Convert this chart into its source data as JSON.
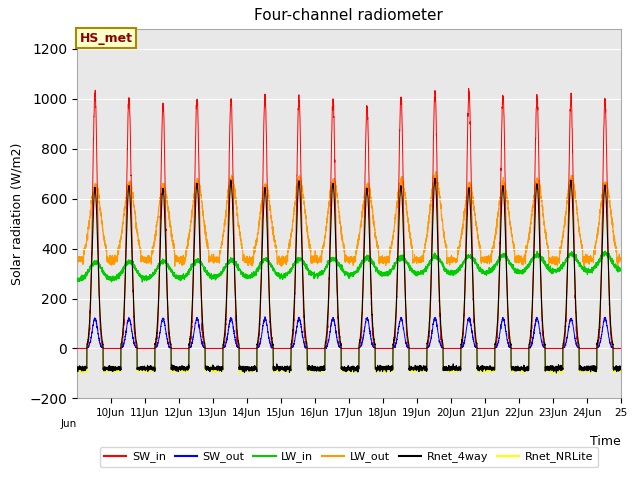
{
  "title": "Four-channel radiometer",
  "xlabel": "Time",
  "ylabel": "Solar radiation (W/m2)",
  "ylim": [
    -200,
    1280
  ],
  "yticks": [
    -200,
    0,
    200,
    400,
    600,
    800,
    1000,
    1200
  ],
  "label_box": "HS_met",
  "legend": [
    "SW_in",
    "SW_out",
    "LW_in",
    "LW_out",
    "Rnet_4way",
    "Rnet_NRLite"
  ],
  "colors": {
    "SW_in": "#FF0000",
    "SW_out": "#0000FF",
    "LW_in": "#00CC00",
    "LW_out": "#FF9900",
    "Rnet_4way": "#000000",
    "Rnet_NRLite": "#FFFF00"
  },
  "bg_color": "#E8E8E8",
  "start_day": 9,
  "end_day": 25,
  "n_days": 16,
  "figsize": [
    6.4,
    4.8
  ],
  "dpi": 100
}
